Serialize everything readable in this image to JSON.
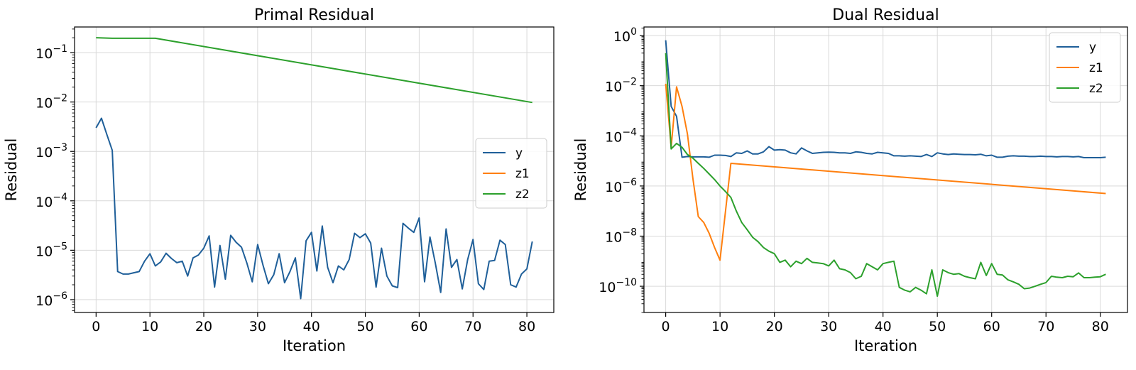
{
  "chart_data": [
    {
      "type": "line",
      "title": "Primal Residual",
      "xlabel": "Iteration",
      "ylabel": "Residual",
      "yscale": "log",
      "xlim": [
        -4,
        85
      ],
      "ylim": [
        5.5e-07,
        0.33
      ],
      "xticks": [
        0,
        10,
        20,
        30,
        40,
        50,
        60,
        70,
        80
      ],
      "yticks": [
        {
          "value": 1e-06,
          "base": "10",
          "exp": "−6"
        },
        {
          "value": 1e-05,
          "base": "10",
          "exp": "−5"
        },
        {
          "value": 0.0001,
          "base": "10",
          "exp": "−4"
        },
        {
          "value": 0.001,
          "base": "10",
          "exp": "−3"
        },
        {
          "value": 0.01,
          "base": "10",
          "exp": "−2"
        },
        {
          "value": 0.1,
          "base": "10",
          "exp": "−1"
        }
      ],
      "grid": true,
      "legend": "center-right",
      "series": [
        {
          "name": "y",
          "color": "#1f5f99",
          "x0": 0,
          "values": [
            0.003,
            0.0047,
            0.0022,
            0.00105,
            3.7e-06,
            3.3e-06,
            3.3e-06,
            3.5e-06,
            3.7e-06,
            6e-06,
            8.5e-06,
            4.8e-06,
            5.8e-06,
            8.7e-06,
            6.8e-06,
            5.6e-06,
            6e-06,
            3e-06,
            7e-06,
            8e-06,
            1.1e-05,
            1.95e-05,
            1.8e-06,
            1.25e-05,
            2.6e-06,
            2e-05,
            1.45e-05,
            1.15e-05,
            5.5e-06,
            2.3e-06,
            1.3e-05,
            5e-06,
            2.1e-06,
            3.2e-06,
            8.5e-06,
            2.2e-06,
            3.7e-06,
            7e-06,
            1.05e-06,
            1.55e-05,
            2.3e-05,
            3.8e-06,
            3.1e-05,
            4.5e-06,
            2.2e-06,
            4.8e-06,
            4e-06,
            6.5e-06,
            2.2e-05,
            1.8e-05,
            2.15e-05,
            1.4e-05,
            1.8e-06,
            1.1e-05,
            3e-06,
            1.9e-06,
            1.75e-06,
            3.5e-05,
            2.8e-05,
            2.3e-05,
            4.5e-05,
            2.3e-06,
            1.85e-05,
            5.5e-06,
            1.4e-06,
            2.7e-05,
            4.5e-06,
            6.5e-06,
            1.65e-06,
            6.5e-06,
            1.65e-05,
            2.1e-06,
            1.6e-06,
            6e-06,
            6.2e-06,
            1.6e-05,
            1.3e-05,
            2e-06,
            1.8e-06,
            3.3e-06,
            4.2e-06,
            1.5e-05
          ]
        },
        {
          "name": "z1",
          "color": "#ff7f0e",
          "x0": 0,
          "values": []
        },
        {
          "name": "z2",
          "color": "#2ca02c",
          "points": [
            [
              0,
              0.2
            ],
            [
              3,
              0.195
            ],
            [
              11,
              0.195
            ],
            [
              81,
              0.0098
            ]
          ]
        }
      ]
    },
    {
      "type": "line",
      "title": "Dual Residual",
      "xlabel": "Iteration",
      "ylabel": "Residual",
      "yscale": "log",
      "xlim": [
        -4,
        85
      ],
      "ylim": [
        9e-12,
        2.2
      ],
      "xticks": [
        0,
        10,
        20,
        30,
        40,
        50,
        60,
        70,
        80
      ],
      "yticks": [
        {
          "value": 1e-10,
          "base": "10",
          "exp": "−10"
        },
        {
          "value": 1e-08,
          "base": "10",
          "exp": "−8"
        },
        {
          "value": 1e-06,
          "base": "10",
          "exp": "−6"
        },
        {
          "value": 0.0001,
          "base": "10",
          "exp": "−4"
        },
        {
          "value": 0.01,
          "base": "10",
          "exp": "−2"
        },
        {
          "value": 1,
          "base": "10",
          "exp": "0"
        }
      ],
      "grid": true,
      "legend": "top-right",
      "series": [
        {
          "name": "y",
          "color": "#1f5f99",
          "x0": 0,
          "values": [
            0.65,
            0.0015,
            0.0006,
            1.4e-05,
            1.5e-05,
            1.45e-05,
            1.45e-05,
            1.45e-05,
            1.4e-05,
            1.7e-05,
            1.7e-05,
            1.65e-05,
            1.5e-05,
            2.1e-05,
            2e-05,
            2.5e-05,
            1.9e-05,
            1.9e-05,
            2.3e-05,
            3.7e-05,
            2.7e-05,
            2.8e-05,
            2.7e-05,
            2.1e-05,
            1.9e-05,
            3.3e-05,
            2.5e-05,
            2e-05,
            2.1e-05,
            2.2e-05,
            2.25e-05,
            2.2e-05,
            2.1e-05,
            2.1e-05,
            2e-05,
            2.3e-05,
            2.2e-05,
            2e-05,
            1.9e-05,
            2.2e-05,
            2.1e-05,
            2e-05,
            1.6e-05,
            1.6e-05,
            1.55e-05,
            1.6e-05,
            1.55e-05,
            1.5e-05,
            1.8e-05,
            1.5e-05,
            2.1e-05,
            1.9e-05,
            1.8e-05,
            1.9e-05,
            1.85e-05,
            1.8e-05,
            1.8e-05,
            1.75e-05,
            1.85e-05,
            1.6e-05,
            1.7e-05,
            1.4e-05,
            1.4e-05,
            1.55e-05,
            1.6e-05,
            1.55e-05,
            1.55e-05,
            1.5e-05,
            1.5e-05,
            1.55e-05,
            1.5e-05,
            1.5e-05,
            1.45e-05,
            1.5e-05,
            1.5e-05,
            1.45e-05,
            1.5e-05,
            1.35e-05,
            1.35e-05,
            1.35e-05,
            1.35e-05,
            1.4e-05
          ]
        },
        {
          "name": "z1",
          "color": "#ff7f0e",
          "points": [
            [
              0,
              0.012
            ],
            [
              1,
              3.5e-05
            ],
            [
              2,
              0.009
            ],
            [
              3,
              0.0015
            ],
            [
              4,
              0.00012
            ],
            [
              5,
              2e-06
            ],
            [
              6,
              6e-08
            ],
            [
              7,
              3.5e-08
            ],
            [
              8,
              1.3e-08
            ],
            [
              9,
              3.5e-09
            ],
            [
              10,
              1.1e-09
            ],
            [
              12,
              8e-06
            ],
            [
              81,
              5e-07
            ]
          ]
        },
        {
          "name": "z2",
          "color": "#2ca02c",
          "x0": 0,
          "values": [
            0.2,
            3e-05,
            5e-05,
            3.5e-05,
            1.8e-05,
            1.3e-05,
            8e-06,
            5e-06,
            3e-06,
            1.8e-06,
            1e-06,
            6e-07,
            3.5e-07,
            1e-07,
            3.5e-08,
            1.8e-08,
            9e-09,
            6e-09,
            3.5e-09,
            2.5e-09,
            2e-09,
            9e-10,
            1.1e-09,
            6e-10,
            1e-09,
            8e-10,
            1.3e-09,
            9e-10,
            8.5e-10,
            8e-10,
            6.5e-10,
            1.1e-09,
            5e-10,
            4.5e-10,
            3.5e-10,
            2e-10,
            2.5e-10,
            8e-10,
            6e-10,
            4.5e-10,
            8e-10,
            9e-10,
            1e-09,
            9e-11,
            7e-11,
            6e-11,
            9e-11,
            7e-11,
            5e-11,
            4.5e-10,
            4e-11,
            4.5e-10,
            3.5e-10,
            3e-10,
            3.2e-10,
            2.5e-10,
            2.2e-10,
            2e-10,
            9e-10,
            2.7e-10,
            8e-10,
            3e-10,
            2.8e-10,
            1.8e-10,
            1.5e-10,
            1.2e-10,
            8e-11,
            8.5e-11,
            1e-10,
            1.2e-10,
            1.4e-10,
            2.5e-10,
            2.3e-10,
            2.2e-10,
            2.5e-10,
            2.4e-10,
            3.4e-10,
            2.2e-10,
            2.2e-10,
            2.3e-10,
            2.4e-10,
            3e-10
          ]
        }
      ]
    }
  ]
}
